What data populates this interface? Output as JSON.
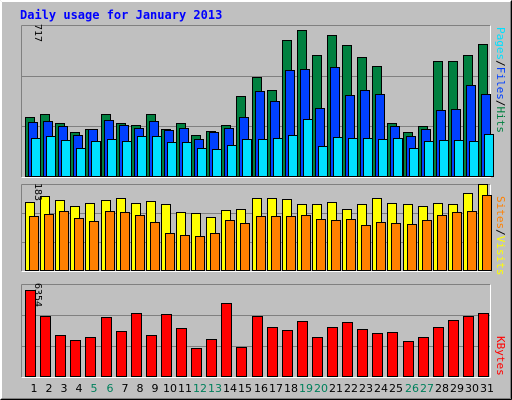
{
  "colors": {
    "background": "#c0c0c0",
    "title": "#0000ff",
    "hits": "#008040",
    "files": "#0040ff",
    "pages": "#00e0ff",
    "visits": "#ffff00",
    "sites": "#ff8000",
    "kbytes": "#ff0000",
    "weekend_day": "#00805c",
    "weekday_day": "#000000"
  },
  "chart_data": [
    {
      "type": "bar",
      "title": "Daily usage for January 2013",
      "categories": [
        "1",
        "2",
        "3",
        "4",
        "5",
        "6",
        "7",
        "8",
        "9",
        "10",
        "11",
        "12",
        "13",
        "14",
        "15",
        "16",
        "17",
        "18",
        "19",
        "20",
        "21",
        "22",
        "23",
        "24",
        "25",
        "26",
        "27",
        "28",
        "29",
        "30",
        "31"
      ],
      "weekend_days": [
        "5",
        "6",
        "12",
        "13",
        "19",
        "20",
        "26",
        "27"
      ],
      "ymax_label": "717",
      "ylim": [
        0,
        717
      ],
      "legend": [
        "Pages",
        "Files",
        "Hits"
      ],
      "legend_separator": "/",
      "legend_placement": "right",
      "series": [
        {
          "name": "Hits",
          "color_key": "hits",
          "values": [
            283,
            297,
            253,
            211,
            226,
            297,
            253,
            246,
            297,
            226,
            253,
            196,
            219,
            243,
            381,
            471,
            410,
            647,
            692,
            575,
            672,
            624,
            566,
            523,
            253,
            213,
            240,
            547,
            547,
            577,
            628
          ]
        },
        {
          "name": "Files",
          "color_key": "files",
          "values": [
            260,
            263,
            239,
            200,
            226,
            270,
            246,
            230,
            263,
            223,
            230,
            180,
            211,
            230,
            283,
            405,
            357,
            505,
            510,
            327,
            520,
            385,
            411,
            390,
            239,
            195,
            226,
            317,
            320,
            434,
            390
          ]
        },
        {
          "name": "Pages",
          "color_key": "pages",
          "values": [
            185,
            193,
            176,
            139,
            169,
            181,
            171,
            193,
            193,
            167,
            167,
            139,
            132,
            150,
            181,
            178,
            186,
            196,
            274,
            148,
            190,
            186,
            182,
            177,
            186,
            139,
            170,
            176,
            174,
            170,
            202
          ]
        }
      ]
    },
    {
      "type": "bar",
      "categories": [
        "1",
        "2",
        "3",
        "4",
        "5",
        "6",
        "7",
        "8",
        "9",
        "10",
        "11",
        "12",
        "13",
        "14",
        "15",
        "16",
        "17",
        "18",
        "19",
        "20",
        "21",
        "22",
        "23",
        "24",
        "25",
        "26",
        "27",
        "28",
        "29",
        "30",
        "31"
      ],
      "ymax_label": "183",
      "ylim": [
        0,
        183
      ],
      "legend": [
        "Sites",
        "Visits"
      ],
      "legend_separator": "/",
      "legend_placement": "right",
      "series": [
        {
          "name": "Visits",
          "color_key": "visits",
          "values": [
            146,
            158,
            149,
            136,
            144,
            149,
            154,
            144,
            147,
            140,
            125,
            121,
            113,
            128,
            131,
            154,
            154,
            151,
            141,
            140,
            146,
            130,
            140,
            154,
            144,
            141,
            137,
            144,
            140,
            164,
            183
          ]
        },
        {
          "name": "Sites",
          "color_key": "sites",
          "values": [
            115,
            120,
            126,
            112,
            105,
            126,
            124,
            117,
            104,
            79,
            75,
            74,
            79,
            107,
            100,
            115,
            115,
            115,
            117,
            110,
            107,
            110,
            96,
            103,
            100,
            99,
            107,
            117,
            125,
            126,
            160
          ]
        }
      ]
    },
    {
      "type": "bar",
      "categories": [
        "1",
        "2",
        "3",
        "4",
        "5",
        "6",
        "7",
        "8",
        "9",
        "10",
        "11",
        "12",
        "13",
        "14",
        "15",
        "16",
        "17",
        "18",
        "19",
        "20",
        "21",
        "22",
        "23",
        "24",
        "25",
        "26",
        "27",
        "28",
        "29",
        "30",
        "31"
      ],
      "ymax_label": "6354",
      "ylim": [
        0,
        6354
      ],
      "legend": [
        "KBytes"
      ],
      "legend_placement": "right",
      "series": [
        {
          "name": "KBytes",
          "color_key": "kbytes",
          "values": [
            5920,
            4200,
            2850,
            2500,
            2750,
            4100,
            3170,
            4380,
            2850,
            4310,
            3370,
            1950,
            2630,
            5040,
            2080,
            4200,
            3450,
            3200,
            3800,
            2750,
            3440,
            3740,
            3290,
            3040,
            3080,
            2470,
            2700,
            3430,
            3880,
            4170,
            4380
          ]
        }
      ]
    }
  ]
}
